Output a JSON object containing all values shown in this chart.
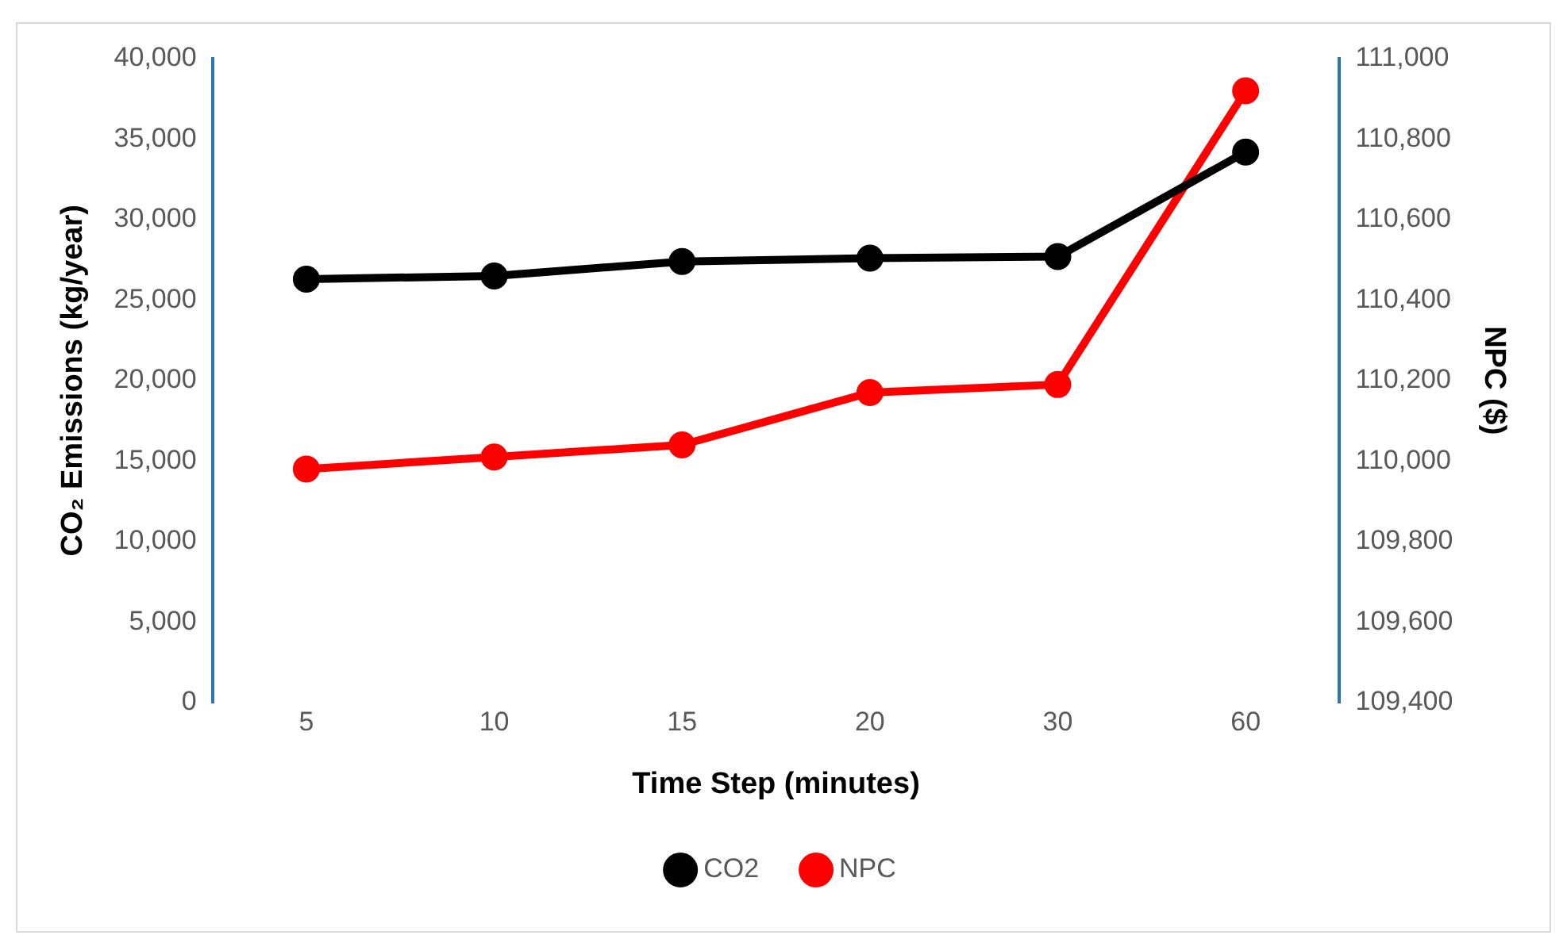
{
  "chart_data": {
    "type": "line",
    "xlabel": "Time Step (minutes)",
    "ylabel": "CO₂ Emissions (kg/year)",
    "y2label": "NPC ($)",
    "categories": [
      "5",
      "10",
      "15",
      "20",
      "30",
      "60"
    ],
    "series": [
      {
        "name": "CO2",
        "color": "#000000",
        "values": [
          26300,
          26500,
          27400,
          27600,
          27700,
          34200
        ]
      },
      {
        "name": "NPC",
        "color": "#ff0000",
        "axis": "y2",
        "values": [
          109980,
          110010,
          110040,
          110170,
          110190,
          110920
        ]
      }
    ],
    "ylim": [
      0,
      40000
    ],
    "yticks": [
      {
        "value": 0,
        "label": "0"
      },
      {
        "value": 5000,
        "label": "5,000"
      },
      {
        "value": 10000,
        "label": "10,000"
      },
      {
        "value": 15000,
        "label": "15,000"
      },
      {
        "value": 20000,
        "label": "20,000"
      },
      {
        "value": 25000,
        "label": "25,000"
      },
      {
        "value": 30000,
        "label": "30,000"
      },
      {
        "value": 35000,
        "label": "35,000"
      },
      {
        "value": 40000,
        "label": "40,000"
      }
    ],
    "y2lim": [
      109400,
      111000
    ],
    "y2ticks": [
      {
        "value": 109400,
        "label": "109,400"
      },
      {
        "value": 109600,
        "label": "109,600"
      },
      {
        "value": 109800,
        "label": "109,800"
      },
      {
        "value": 110000,
        "label": "110,000"
      },
      {
        "value": 110200,
        "label": "110,200"
      },
      {
        "value": 110400,
        "label": "110,400"
      },
      {
        "value": 110600,
        "label": "110,600"
      },
      {
        "value": 110800,
        "label": "110,800"
      },
      {
        "value": 111000,
        "label": "111,000"
      }
    ],
    "grid": false,
    "legend": "bottom",
    "marker": "circle",
    "line_style": "solid"
  }
}
